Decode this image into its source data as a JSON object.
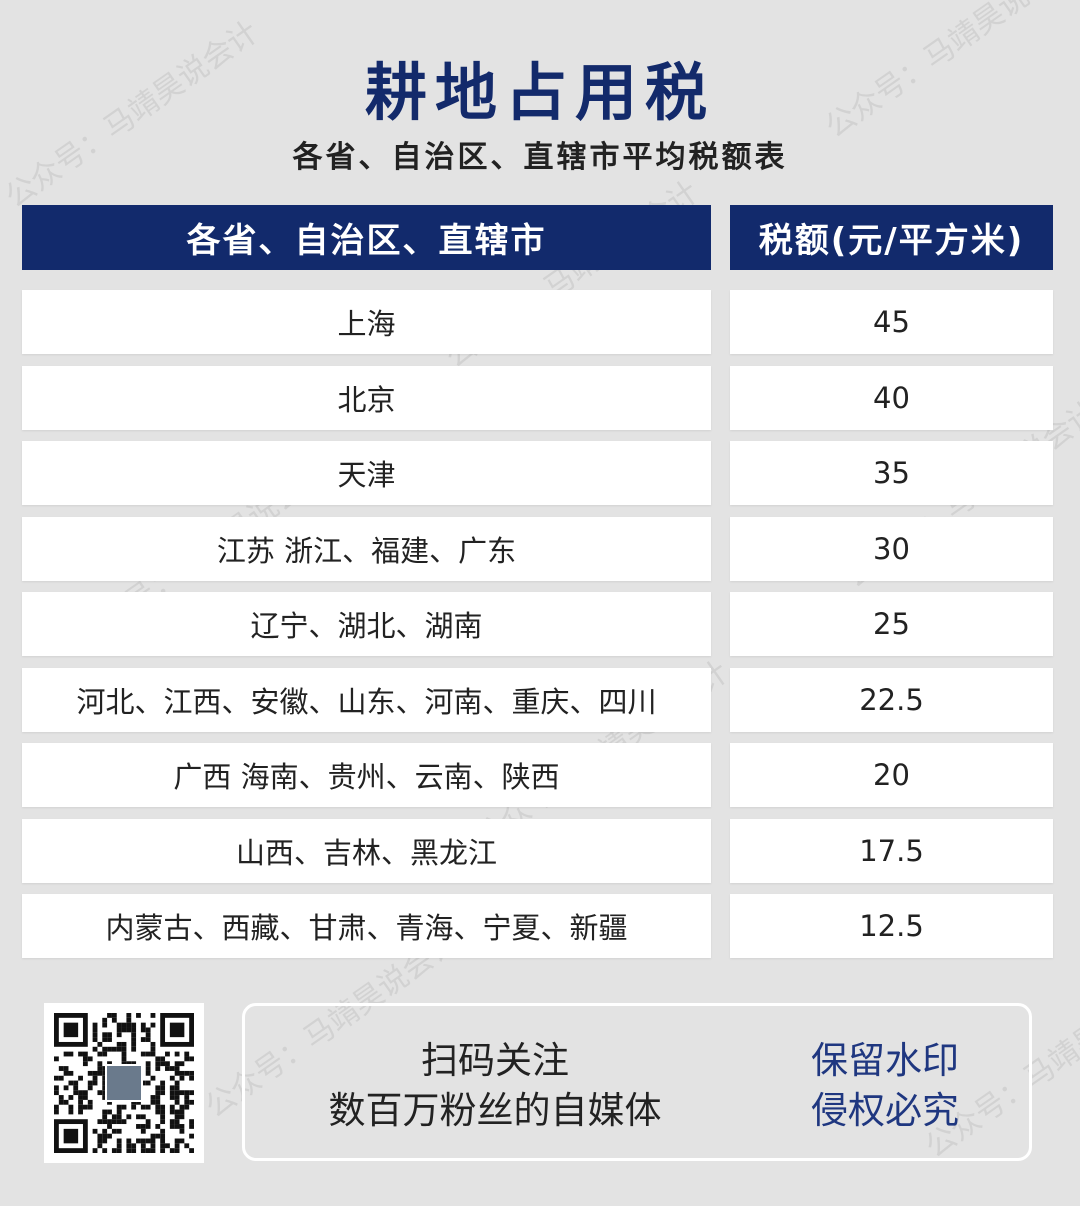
{
  "title": "耕地占用税",
  "subtitle": "各省、自治区、直辖市平均税额表",
  "table": {
    "headers": [
      "各省、自治区、直辖市",
      "税额(元/平方米)"
    ],
    "rows": [
      {
        "region": "上海",
        "amount": "45"
      },
      {
        "region": "北京",
        "amount": "40"
      },
      {
        "region": "天津",
        "amount": "35"
      },
      {
        "region": "江苏 浙江、福建、广东",
        "amount": "30"
      },
      {
        "region": "辽宁、湖北、湖南",
        "amount": "25"
      },
      {
        "region": "河北、江西、安徽、山东、河南、重庆、四川",
        "amount": "22.5"
      },
      {
        "region": "广西 海南、贵州、云南、陕西",
        "amount": "20"
      },
      {
        "region": "山西、吉林、黑龙江",
        "amount": "17.5"
      },
      {
        "region": "内蒙古、西藏、甘肃、青海、宁夏、新疆",
        "amount": "12.5"
      }
    ]
  },
  "footer": {
    "line1": "扫码关注",
    "line2": "数百万粉丝的自媒体",
    "notice1": "保留水印",
    "notice2": "侵权必究"
  },
  "watermark": "公众号：马靖昊说会计",
  "colors": {
    "header": "#122a6c",
    "background": "#e3e3e3",
    "notice": "#1f3780"
  }
}
